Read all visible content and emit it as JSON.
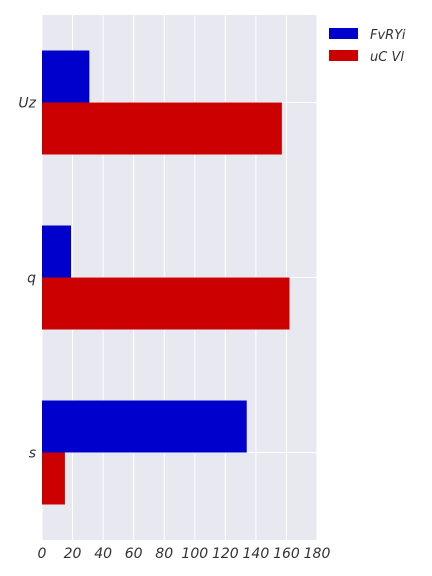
{
  "chart_data": {
    "type": "bar",
    "orientation": "horizontal",
    "categories": [
      "Uz",
      "q",
      "s"
    ],
    "series": [
      {
        "name": "FvRYi",
        "color": "#0000cc",
        "values": [
          31,
          19,
          134
        ]
      },
      {
        "name": "uC Vl",
        "color": "#cc0000",
        "values": [
          157,
          162,
          15
        ]
      }
    ],
    "x_ticks": [
      "0",
      "20",
      "40",
      "60",
      "80",
      "100",
      "120",
      "140",
      "160",
      "180"
    ],
    "xlim": [
      0,
      180
    ],
    "grid": true,
    "legend_position": "top-right",
    "background": "#e8e8f0"
  }
}
